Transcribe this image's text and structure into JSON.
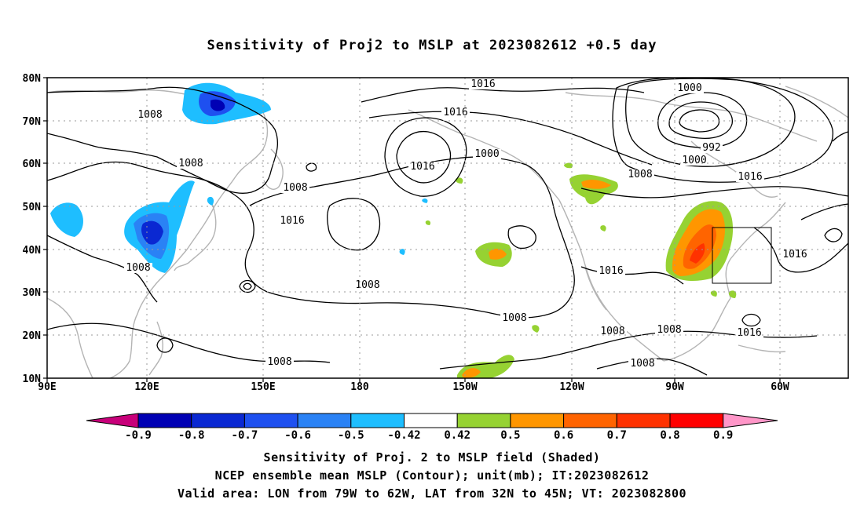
{
  "title": "Sensitivity of Proj2 to MSLP at 2023082612 +0.5 day",
  "map": {
    "lat_labels": [
      "80N",
      "70N",
      "60N",
      "50N",
      "40N",
      "30N",
      "20N",
      "10N"
    ],
    "lon_labels": [
      "90E",
      "120E",
      "150E",
      "180",
      "150W",
      "120W",
      "90W",
      "60W"
    ],
    "contour_labels": [
      "1016",
      "1000",
      "1008",
      "1016",
      "1008",
      "1016",
      "1000",
      "1008",
      "992",
      "1000",
      "1008",
      "1016",
      "1008",
      "1016",
      "1016",
      "1016",
      "1008",
      "1008",
      "1008",
      "1008",
      "1016",
      "1008",
      "1008"
    ],
    "valid_box": {
      "lon": [
        "79W",
        "62W"
      ],
      "lat": [
        "32N",
        "45N"
      ]
    }
  },
  "colorbar": {
    "labels": [
      "-0.9",
      "-0.8",
      "-0.7",
      "-0.6",
      "-0.5",
      "-0.42",
      "0.42",
      "0.5",
      "0.6",
      "0.7",
      "0.8",
      "0.9"
    ],
    "colors": [
      "#c8007a",
      "#0000b4",
      "#0a28d2",
      "#1e50f0",
      "#2a82f5",
      "#1ebeff",
      "#ffffff",
      "#96d232",
      "#ff9600",
      "#ff6400",
      "#ff3200",
      "#ff0000",
      "#ff96c8"
    ]
  },
  "captions": {
    "line1": "Sensitivity of Proj. 2 to MSLP field (Shaded)",
    "line2": "NCEP ensemble mean MSLP (Contour); unit(mb); IT:2023082612",
    "line3": "Valid area: LON from 79W to 62W, LAT from 32N to 45N; VT: 2023082800"
  }
}
